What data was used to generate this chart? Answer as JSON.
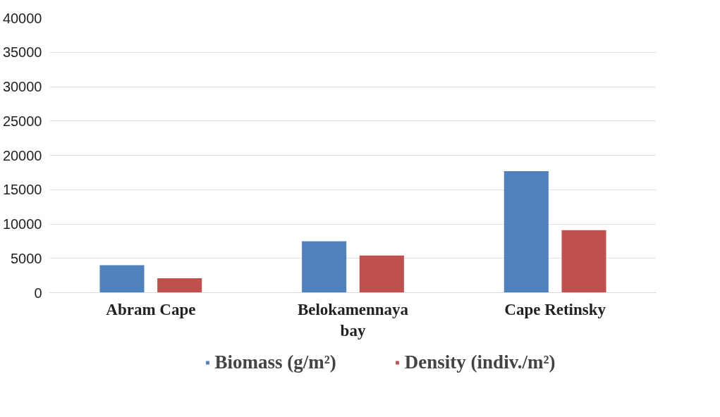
{
  "chart_data": {
    "type": "bar",
    "categories": [
      "Abram Cape",
      "Belokamennaya bay",
      "Cape Retinsky"
    ],
    "series": [
      {
        "name": "Biomass (g/m²)",
        "color": "#4f81bd",
        "values": [
          4000,
          7500,
          17700
        ]
      },
      {
        "name": "Density (indiv./m²)",
        "color": "#c0504d",
        "values": [
          2100,
          5400,
          9100
        ]
      }
    ],
    "ylim": [
      0,
      40000
    ],
    "yticks": [
      0,
      5000,
      10000,
      15000,
      20000,
      25000,
      30000,
      35000,
      40000
    ],
    "grid": "y",
    "legend": "bottom"
  }
}
